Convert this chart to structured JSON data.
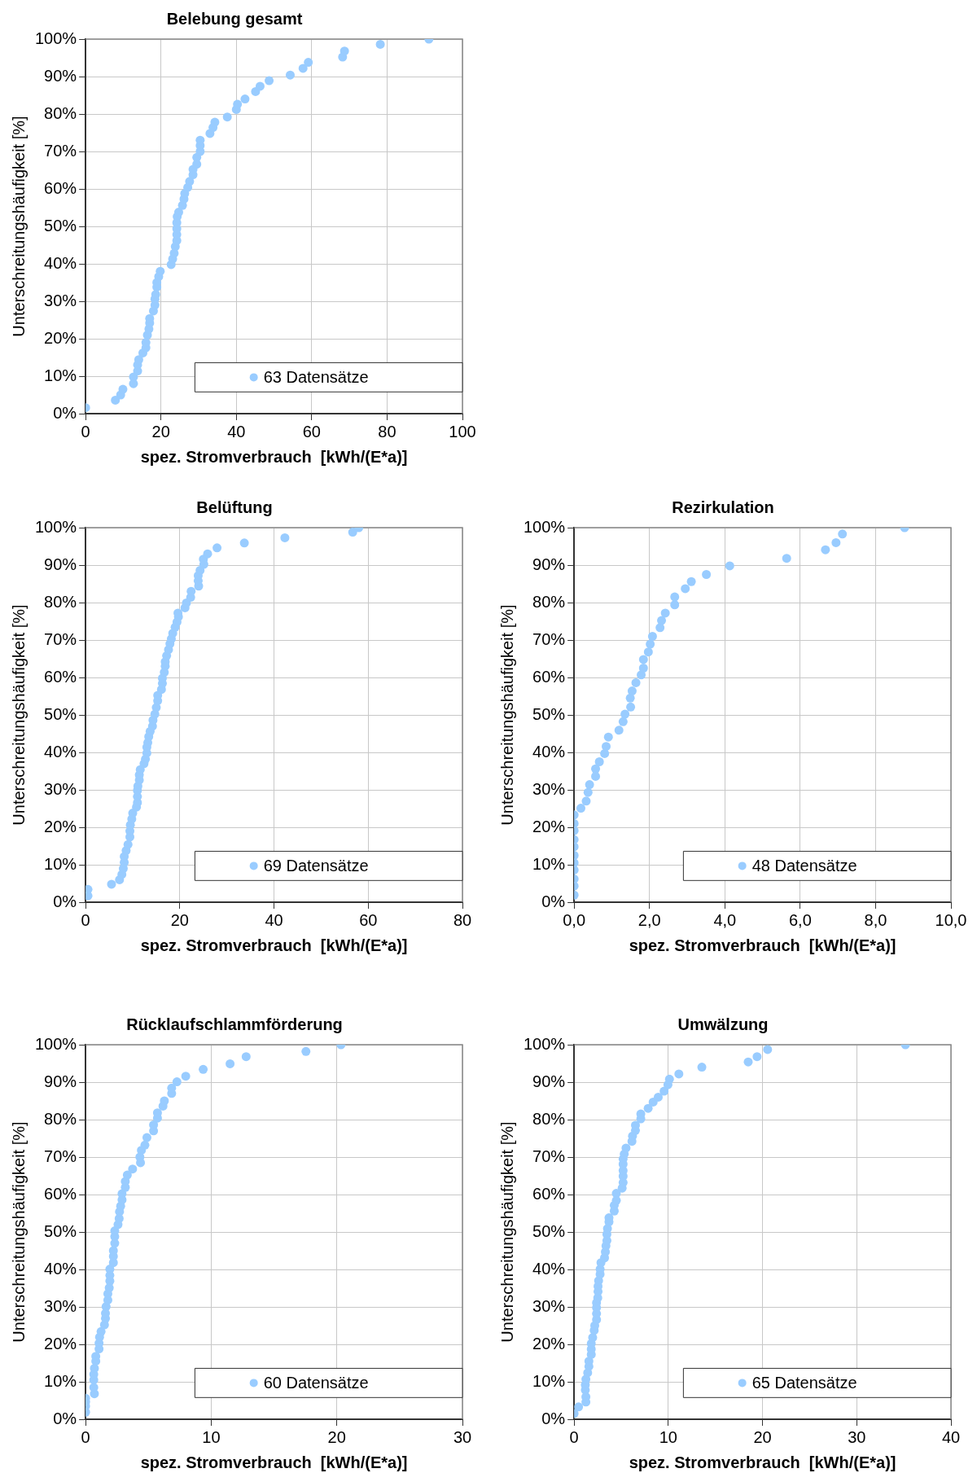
{
  "chart_data": [
    {
      "type": "scatter",
      "title": "Belebung gesamt",
      "xlabel": "spez. Stromverbrauch  [kWh/(E*a)]",
      "ylabel": "Unterschreitungshäufigkeit [%]",
      "xlim": [
        0,
        100
      ],
      "xticks": [
        0,
        20,
        40,
        60,
        80,
        100
      ],
      "ylim": [
        0,
        100
      ],
      "yticks": [
        {
          "value": 0,
          "label": "0%"
        },
        {
          "value": 10,
          "label": "10%"
        },
        {
          "value": 20,
          "label": "20%"
        },
        {
          "value": 30,
          "label": "30%"
        },
        {
          "value": 40,
          "label": "40%"
        },
        {
          "value": 50,
          "label": "50%"
        },
        {
          "value": 60,
          "label": "60%"
        },
        {
          "value": 70,
          "label": "70%"
        },
        {
          "value": 80,
          "label": "80%"
        },
        {
          "value": 90,
          "label": "90%"
        },
        {
          "value": 100,
          "label": "100%"
        }
      ],
      "grid": true,
      "legend": "bottom right",
      "marker": "circle",
      "series": [
        {
          "name": "63 Datensätze",
          "color": "#99ccff",
          "x": [
            0,
            7.9,
            9.3,
            9.9,
            12.7,
            12.7,
            13.8,
            13.8,
            14.1,
            15.2,
            16,
            16,
            16.4,
            16.8,
            17,
            17,
            18,
            18.4,
            18.4,
            18.6,
            18.9,
            18.9,
            19.4,
            19.8,
            22.7,
            23.1,
            23.5,
            23.8,
            24.2,
            24.2,
            24.2,
            24.2,
            24.3,
            24.7,
            25.7,
            26.1,
            26.3,
            27.1,
            27.6,
            28.5,
            28.5,
            29.5,
            29.5,
            30.4,
            30.4,
            30.4,
            33,
            33.8,
            34.3,
            37.6,
            40,
            40.3,
            42.3,
            45.1,
            46.3,
            48.7,
            54.3,
            57.7,
            59.1,
            68.2,
            68.7,
            78.2,
            91.1
          ],
          "values": [
            1.6,
            3.6,
            5,
            6.5,
            8,
            9.8,
            11.4,
            13,
            14.4,
            16.2,
            17.6,
            19,
            21,
            22.6,
            24.2,
            25.4,
            27.4,
            29,
            30.6,
            31.8,
            33.8,
            35,
            36.6,
            38,
            39.8,
            41.3,
            42.8,
            44.6,
            46.2,
            47.8,
            49.4,
            51,
            52.6,
            53.8,
            55.6,
            57.3,
            58.8,
            60.4,
            62,
            63.8,
            65.2,
            66.6,
            68.4,
            70,
            71.6,
            73,
            74.8,
            76.4,
            77.8,
            79.2,
            81.2,
            82.6,
            84,
            86,
            87.4,
            88.9,
            90.4,
            92.2,
            93.8,
            95.2,
            96.8,
            98.6,
            100
          ]
        }
      ]
    },
    {
      "type": "scatter",
      "title": "Belüftung",
      "xlabel": "spez. Stromverbrauch  [kWh/(E*a)]",
      "ylabel": "Unterschreitungshäufigkeit [%]",
      "xlim": [
        0,
        80
      ],
      "xticks": [
        0,
        20,
        40,
        60,
        80
      ],
      "ylim": [
        0,
        100
      ],
      "yticks": [
        {
          "value": 0,
          "label": "0%"
        },
        {
          "value": 10,
          "label": "10%"
        },
        {
          "value": 20,
          "label": "20%"
        },
        {
          "value": 30,
          "label": "30%"
        },
        {
          "value": 40,
          "label": "40%"
        },
        {
          "value": 50,
          "label": "50%"
        },
        {
          "value": 60,
          "label": "60%"
        },
        {
          "value": 70,
          "label": "70%"
        },
        {
          "value": 80,
          "label": "80%"
        },
        {
          "value": 90,
          "label": "90%"
        },
        {
          "value": 100,
          "label": "100%"
        }
      ],
      "grid": true,
      "legend": "bottom right",
      "marker": "circle",
      "series": [
        {
          "name": "69 Datensätze",
          "color": "#99ccff",
          "x": [
            0.5,
            0.5,
            5.5,
            7.2,
            7.7,
            8,
            8.2,
            8.2,
            8.6,
            9,
            9.4,
            9.4,
            9.5,
            9.8,
            10,
            10.8,
            11,
            11,
            11,
            11.1,
            11.4,
            11.4,
            11.6,
            12.4,
            12.7,
            13,
            13,
            13.2,
            13.4,
            13.7,
            14.2,
            14.3,
            14.7,
            15,
            15.3,
            15.3,
            16.1,
            16.3,
            16.3,
            16.7,
            16.9,
            16.9,
            17.2,
            17.6,
            17.9,
            18.2,
            18.5,
            19,
            19.4,
            19.7,
            19.6,
            21.1,
            21.4,
            22.3,
            22.4,
            24,
            23.9,
            23.9,
            24.3,
            25.1,
            25,
            25.9,
            27.9,
            33.7,
            42.3,
            56.7,
            58
          ],
          "values": [
            1.7,
            3.4,
            4.8,
            6,
            7.4,
            9,
            10.6,
            12.2,
            13.8,
            15.4,
            17.4,
            19,
            20.6,
            22.2,
            23.8,
            25.4,
            26.6,
            28.2,
            29.8,
            31,
            32.6,
            34,
            35.4,
            37,
            38.2,
            39.8,
            41.4,
            42.6,
            44.2,
            45.6,
            47,
            48.6,
            50.2,
            52,
            53.8,
            55.2,
            56.8,
            58.4,
            59.8,
            61.4,
            63,
            64.2,
            65.8,
            67.4,
            69,
            70.3,
            71.8,
            73.4,
            74.8,
            76.2,
            77.2,
            78.6,
            79.9,
            81.4,
            83,
            84.4,
            85.8,
            87.2,
            88.6,
            90.2,
            91.6,
            93,
            94.6,
            95.9,
            97.3,
            98.8,
            100
          ]
        }
      ]
    },
    {
      "type": "scatter",
      "title": "Rezirkulation",
      "xlabel": "spez. Stromverbrauch  [kWh/(E*a)]",
      "ylabel": "Unterschreitungshäufigkeit [%]",
      "xlim": [
        0,
        10
      ],
      "xticks": [
        {
          "value": 0,
          "label": "0,0"
        },
        {
          "value": 2,
          "label": "2,0"
        },
        {
          "value": 4,
          "label": "4,0"
        },
        {
          "value": 6,
          "label": "6,0"
        },
        {
          "value": 8,
          "label": "8,0"
        },
        {
          "value": 10,
          "label": "10,0"
        }
      ],
      "ylim": [
        0,
        100
      ],
      "yticks": [
        {
          "value": 0,
          "label": "0%"
        },
        {
          "value": 10,
          "label": "10%"
        },
        {
          "value": 20,
          "label": "20%"
        },
        {
          "value": 30,
          "label": "30%"
        },
        {
          "value": 40,
          "label": "40%"
        },
        {
          "value": 50,
          "label": "50%"
        },
        {
          "value": 60,
          "label": "60%"
        },
        {
          "value": 70,
          "label": "70%"
        },
        {
          "value": 80,
          "label": "80%"
        },
        {
          "value": 90,
          "label": "90%"
        },
        {
          "value": 100,
          "label": "100%"
        }
      ],
      "grid": true,
      "legend": "bottom right",
      "marker": "circle",
      "series": [
        {
          "name": "48 Datensätze",
          "color": "#99ccff",
          "x": [
            0,
            0,
            0,
            0,
            0,
            0,
            0,
            0,
            0,
            0,
            0,
            0.18,
            0.32,
            0.37,
            0.41,
            0.57,
            0.57,
            0.67,
            0.81,
            0.85,
            0.91,
            1.19,
            1.3,
            1.35,
            1.5,
            1.49,
            1.54,
            1.64,
            1.78,
            1.84,
            1.84,
            1.97,
            2.02,
            2.08,
            2.28,
            2.32,
            2.42,
            2.67,
            2.67,
            2.95,
            3.11,
            3.51,
            4.13,
            5.64,
            6.67,
            6.95,
            7.12,
            8.77
          ],
          "values": [
            1.9,
            4.3,
            6.2,
            8.6,
            10.5,
            12.5,
            14.8,
            16.7,
            19.1,
            21,
            23.3,
            25.1,
            27,
            29.3,
            31.4,
            33.6,
            35.6,
            37.5,
            39.7,
            41.6,
            44.1,
            45.9,
            48.2,
            50.2,
            52.1,
            54.5,
            56.4,
            58.6,
            60.7,
            62.5,
            64.8,
            66.8,
            68.9,
            71,
            73.3,
            75.2,
            77.2,
            79.4,
            81.5,
            83.7,
            85.6,
            87.5,
            89.8,
            91.8,
            94.1,
            96,
            98.3,
            100
          ]
        }
      ]
    },
    {
      "type": "scatter",
      "title": "Rücklaufschlammförderung",
      "xlabel": "spez. Stromverbrauch  [kWh/(E*a)]",
      "ylabel": "Unterschreitungshäufigkeit [%]",
      "xlim": [
        0,
        30
      ],
      "xticks": [
        0,
        10,
        20,
        30
      ],
      "ylim": [
        0,
        100
      ],
      "yticks": [
        {
          "value": 0,
          "label": "0%"
        },
        {
          "value": 10,
          "label": "10%"
        },
        {
          "value": 20,
          "label": "20%"
        },
        {
          "value": 30,
          "label": "30%"
        },
        {
          "value": 40,
          "label": "40%"
        },
        {
          "value": 50,
          "label": "50%"
        },
        {
          "value": 60,
          "label": "60%"
        },
        {
          "value": 70,
          "label": "70%"
        },
        {
          "value": 80,
          "label": "80%"
        },
        {
          "value": 90,
          "label": "90%"
        },
        {
          "value": 100,
          "label": "100%"
        }
      ],
      "grid": true,
      "legend": "bottom right",
      "marker": "circle",
      "series": [
        {
          "name": "60 Datensätze",
          "color": "#99ccff",
          "x": [
            0,
            0,
            0,
            0,
            0.7,
            0.65,
            0.65,
            0.65,
            0.7,
            0.81,
            0.81,
            1.07,
            1.07,
            1.11,
            1.23,
            1.5,
            1.58,
            1.58,
            1.63,
            1.77,
            1.77,
            1.88,
            1.93,
            1.93,
            1.93,
            2.21,
            2.21,
            2.21,
            2.32,
            2.32,
            2.32,
            2.58,
            2.67,
            2.7,
            2.79,
            2.9,
            2.9,
            3.16,
            3.16,
            3.32,
            3.74,
            4.37,
            4.32,
            4.44,
            4.72,
            4.88,
            5.41,
            5.41,
            5.72,
            5.72,
            6.16,
            6.27,
            6.85,
            6.85,
            7.27,
            7.97,
            9.36,
            11.5,
            12.78,
            17.54,
            20.33
          ],
          "values": [
            1.9,
            3.5,
            4.7,
            5.6,
            6.8,
            8.5,
            10.5,
            12,
            13.6,
            15.5,
            16.8,
            18.8,
            20.3,
            21.9,
            23.4,
            25.2,
            26.9,
            28.3,
            30.1,
            31.8,
            33.5,
            35.1,
            36.9,
            38.4,
            40.1,
            41.8,
            43.5,
            45,
            47,
            48.8,
            50.3,
            52,
            53.6,
            55.4,
            56.9,
            58.6,
            60.2,
            61.9,
            63.5,
            65.2,
            66.8,
            68.5,
            70,
            71.8,
            73.2,
            75.2,
            77,
            78.6,
            80.4,
            81.8,
            83.6,
            85,
            87,
            88.4,
            90.1,
            91.6,
            93.4,
            94.9,
            96.8,
            98.2,
            100
          ]
        }
      ]
    },
    {
      "type": "scatter",
      "title": "Umwälzung",
      "xlabel": "spez. Stromverbrauch  [kWh/(E*a)]",
      "ylabel": "Unterschreitungshäufigkeit [%]",
      "xlim": [
        0,
        40
      ],
      "xticks": [
        0,
        10,
        20,
        30,
        40
      ],
      "ylim": [
        0,
        100
      ],
      "yticks": [
        {
          "value": 0,
          "label": "0%"
        },
        {
          "value": 10,
          "label": "10%"
        },
        {
          "value": 20,
          "label": "20%"
        },
        {
          "value": 30,
          "label": "30%"
        },
        {
          "value": 40,
          "label": "40%"
        },
        {
          "value": 50,
          "label": "50%"
        },
        {
          "value": 60,
          "label": "60%"
        },
        {
          "value": 70,
          "label": "70%"
        },
        {
          "value": 80,
          "label": "80%"
        },
        {
          "value": 90,
          "label": "90%"
        },
        {
          "value": 100,
          "label": "100%"
        }
      ],
      "grid": true,
      "legend": "bottom right",
      "marker": "circle",
      "series": [
        {
          "name": "65 Datensätze",
          "color": "#99ccff",
          "x": [
            0,
            0.47,
            1.25,
            1.25,
            1.19,
            1.19,
            1.25,
            1.44,
            1.57,
            1.57,
            1.82,
            1.82,
            1.82,
            1.97,
            2.13,
            2.19,
            2.38,
            2.38,
            2.38,
            2.38,
            2.51,
            2.54,
            2.54,
            2.6,
            2.76,
            2.76,
            2.85,
            3.23,
            3.32,
            3.38,
            3.48,
            3.48,
            3.54,
            3.7,
            3.7,
            4.26,
            4.26,
            4.48,
            4.48,
            5.1,
            5.2,
            5.2,
            5.2,
            5.2,
            5.2,
            5.32,
            5.51,
            6.14,
            6.2,
            6.51,
            6.51,
            7.08,
            7.08,
            7.86,
            8.39,
            8.93,
            9.55,
            9.96,
            10.12,
            11.12,
            13.56,
            18.48,
            19.42,
            20.54,
            35.17
          ],
          "values": [
            1.5,
            3.3,
            4.6,
            6,
            7.8,
            9.2,
            10.7,
            12.4,
            14.1,
            15.5,
            17.3,
            18.7,
            20.2,
            21.8,
            23.7,
            25,
            26.6,
            28.2,
            29.8,
            31.1,
            32.4,
            34.1,
            35.5,
            37,
            38.7,
            40.1,
            41.8,
            43.1,
            44.7,
            46.3,
            47.7,
            49.4,
            50.9,
            52.7,
            53.8,
            55.6,
            57.1,
            58.4,
            60.3,
            61.7,
            63.2,
            64.9,
            66.4,
            68.1,
            69.5,
            70.8,
            72.4,
            74.2,
            75.6,
            77.1,
            78.5,
            80.2,
            81.5,
            83,
            84.7,
            86,
            87.6,
            89.3,
            90.8,
            92.2,
            94,
            95.4,
            96.8,
            98.7,
            100
          ]
        }
      ]
    }
  ]
}
